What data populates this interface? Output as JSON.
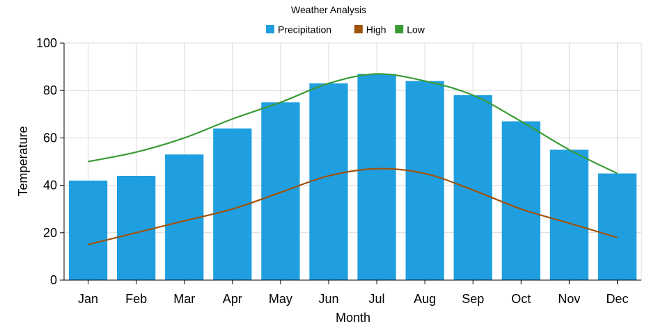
{
  "chart_data": {
    "type": "bar",
    "title": "Weather Analysis",
    "xlabel": "Month",
    "ylabel": "Temperature",
    "ylim": [
      0,
      100
    ],
    "yticks": [
      0,
      20,
      40,
      60,
      80,
      100
    ],
    "grid": true,
    "legend_position": "top-center",
    "categories": [
      "Jan",
      "Feb",
      "Mar",
      "Apr",
      "May",
      "Jun",
      "Jul",
      "Aug",
      "Sep",
      "Oct",
      "Nov",
      "Dec"
    ],
    "series": [
      {
        "name": "Precipitation",
        "type": "bar",
        "color": "#1f9fe0",
        "values": [
          42,
          44,
          53,
          64,
          75,
          83,
          87,
          84,
          78,
          67,
          55,
          45
        ]
      },
      {
        "name": "High",
        "type": "line",
        "color": "#a0520b",
        "values": [
          15,
          20,
          25,
          30,
          37,
          44,
          47,
          45,
          38,
          30,
          24,
          18
        ]
      },
      {
        "name": "Low",
        "type": "line",
        "color": "#3a9b35",
        "values": [
          50,
          54,
          60,
          68,
          75,
          83,
          87,
          84,
          78,
          67,
          55,
          45
        ]
      }
    ]
  }
}
